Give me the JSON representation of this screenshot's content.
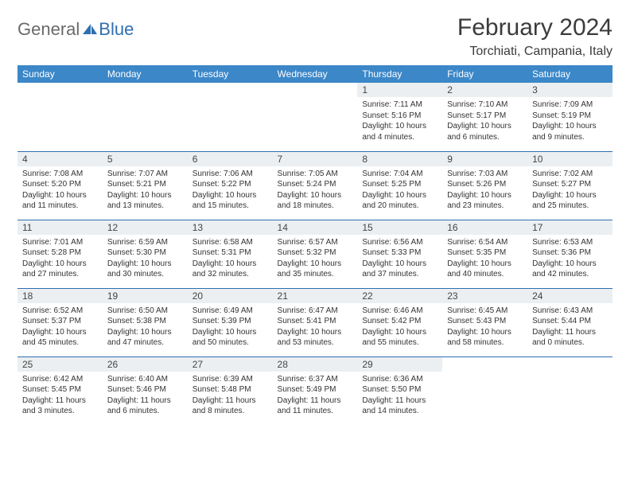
{
  "logo": {
    "part1": "General",
    "part2": "Blue"
  },
  "header": {
    "month": "February 2024",
    "location": "Torchiati, Campania, Italy"
  },
  "colors": {
    "header_bg": "#3b87c8",
    "header_text": "#ffffff",
    "row_divider": "#2f6fb0",
    "daynum_bg": "#eceff1",
    "logo_gray": "#6a6a6a",
    "logo_blue": "#2f6fb0"
  },
  "weekdays": [
    "Sunday",
    "Monday",
    "Tuesday",
    "Wednesday",
    "Thursday",
    "Friday",
    "Saturday"
  ],
  "weeks": [
    [
      {
        "blank": true
      },
      {
        "blank": true
      },
      {
        "blank": true
      },
      {
        "blank": true
      },
      {
        "num": "1",
        "sunrise": "Sunrise: 7:11 AM",
        "sunset": "Sunset: 5:16 PM",
        "day1": "Daylight: 10 hours",
        "day2": "and 4 minutes."
      },
      {
        "num": "2",
        "sunrise": "Sunrise: 7:10 AM",
        "sunset": "Sunset: 5:17 PM",
        "day1": "Daylight: 10 hours",
        "day2": "and 6 minutes."
      },
      {
        "num": "3",
        "sunrise": "Sunrise: 7:09 AM",
        "sunset": "Sunset: 5:19 PM",
        "day1": "Daylight: 10 hours",
        "day2": "and 9 minutes."
      }
    ],
    [
      {
        "num": "4",
        "sunrise": "Sunrise: 7:08 AM",
        "sunset": "Sunset: 5:20 PM",
        "day1": "Daylight: 10 hours",
        "day2": "and 11 minutes."
      },
      {
        "num": "5",
        "sunrise": "Sunrise: 7:07 AM",
        "sunset": "Sunset: 5:21 PM",
        "day1": "Daylight: 10 hours",
        "day2": "and 13 minutes."
      },
      {
        "num": "6",
        "sunrise": "Sunrise: 7:06 AM",
        "sunset": "Sunset: 5:22 PM",
        "day1": "Daylight: 10 hours",
        "day2": "and 15 minutes."
      },
      {
        "num": "7",
        "sunrise": "Sunrise: 7:05 AM",
        "sunset": "Sunset: 5:24 PM",
        "day1": "Daylight: 10 hours",
        "day2": "and 18 minutes."
      },
      {
        "num": "8",
        "sunrise": "Sunrise: 7:04 AM",
        "sunset": "Sunset: 5:25 PM",
        "day1": "Daylight: 10 hours",
        "day2": "and 20 minutes."
      },
      {
        "num": "9",
        "sunrise": "Sunrise: 7:03 AM",
        "sunset": "Sunset: 5:26 PM",
        "day1": "Daylight: 10 hours",
        "day2": "and 23 minutes."
      },
      {
        "num": "10",
        "sunrise": "Sunrise: 7:02 AM",
        "sunset": "Sunset: 5:27 PM",
        "day1": "Daylight: 10 hours",
        "day2": "and 25 minutes."
      }
    ],
    [
      {
        "num": "11",
        "sunrise": "Sunrise: 7:01 AM",
        "sunset": "Sunset: 5:28 PM",
        "day1": "Daylight: 10 hours",
        "day2": "and 27 minutes."
      },
      {
        "num": "12",
        "sunrise": "Sunrise: 6:59 AM",
        "sunset": "Sunset: 5:30 PM",
        "day1": "Daylight: 10 hours",
        "day2": "and 30 minutes."
      },
      {
        "num": "13",
        "sunrise": "Sunrise: 6:58 AM",
        "sunset": "Sunset: 5:31 PM",
        "day1": "Daylight: 10 hours",
        "day2": "and 32 minutes."
      },
      {
        "num": "14",
        "sunrise": "Sunrise: 6:57 AM",
        "sunset": "Sunset: 5:32 PM",
        "day1": "Daylight: 10 hours",
        "day2": "and 35 minutes."
      },
      {
        "num": "15",
        "sunrise": "Sunrise: 6:56 AM",
        "sunset": "Sunset: 5:33 PM",
        "day1": "Daylight: 10 hours",
        "day2": "and 37 minutes."
      },
      {
        "num": "16",
        "sunrise": "Sunrise: 6:54 AM",
        "sunset": "Sunset: 5:35 PM",
        "day1": "Daylight: 10 hours",
        "day2": "and 40 minutes."
      },
      {
        "num": "17",
        "sunrise": "Sunrise: 6:53 AM",
        "sunset": "Sunset: 5:36 PM",
        "day1": "Daylight: 10 hours",
        "day2": "and 42 minutes."
      }
    ],
    [
      {
        "num": "18",
        "sunrise": "Sunrise: 6:52 AM",
        "sunset": "Sunset: 5:37 PM",
        "day1": "Daylight: 10 hours",
        "day2": "and 45 minutes."
      },
      {
        "num": "19",
        "sunrise": "Sunrise: 6:50 AM",
        "sunset": "Sunset: 5:38 PM",
        "day1": "Daylight: 10 hours",
        "day2": "and 47 minutes."
      },
      {
        "num": "20",
        "sunrise": "Sunrise: 6:49 AM",
        "sunset": "Sunset: 5:39 PM",
        "day1": "Daylight: 10 hours",
        "day2": "and 50 minutes."
      },
      {
        "num": "21",
        "sunrise": "Sunrise: 6:47 AM",
        "sunset": "Sunset: 5:41 PM",
        "day1": "Daylight: 10 hours",
        "day2": "and 53 minutes."
      },
      {
        "num": "22",
        "sunrise": "Sunrise: 6:46 AM",
        "sunset": "Sunset: 5:42 PM",
        "day1": "Daylight: 10 hours",
        "day2": "and 55 minutes."
      },
      {
        "num": "23",
        "sunrise": "Sunrise: 6:45 AM",
        "sunset": "Sunset: 5:43 PM",
        "day1": "Daylight: 10 hours",
        "day2": "and 58 minutes."
      },
      {
        "num": "24",
        "sunrise": "Sunrise: 6:43 AM",
        "sunset": "Sunset: 5:44 PM",
        "day1": "Daylight: 11 hours",
        "day2": "and 0 minutes."
      }
    ],
    [
      {
        "num": "25",
        "sunrise": "Sunrise: 6:42 AM",
        "sunset": "Sunset: 5:45 PM",
        "day1": "Daylight: 11 hours",
        "day2": "and 3 minutes."
      },
      {
        "num": "26",
        "sunrise": "Sunrise: 6:40 AM",
        "sunset": "Sunset: 5:46 PM",
        "day1": "Daylight: 11 hours",
        "day2": "and 6 minutes."
      },
      {
        "num": "27",
        "sunrise": "Sunrise: 6:39 AM",
        "sunset": "Sunset: 5:48 PM",
        "day1": "Daylight: 11 hours",
        "day2": "and 8 minutes."
      },
      {
        "num": "28",
        "sunrise": "Sunrise: 6:37 AM",
        "sunset": "Sunset: 5:49 PM",
        "day1": "Daylight: 11 hours",
        "day2": "and 11 minutes."
      },
      {
        "num": "29",
        "sunrise": "Sunrise: 6:36 AM",
        "sunset": "Sunset: 5:50 PM",
        "day1": "Daylight: 11 hours",
        "day2": "and 14 minutes."
      },
      {
        "blank": true
      },
      {
        "blank": true
      }
    ]
  ]
}
